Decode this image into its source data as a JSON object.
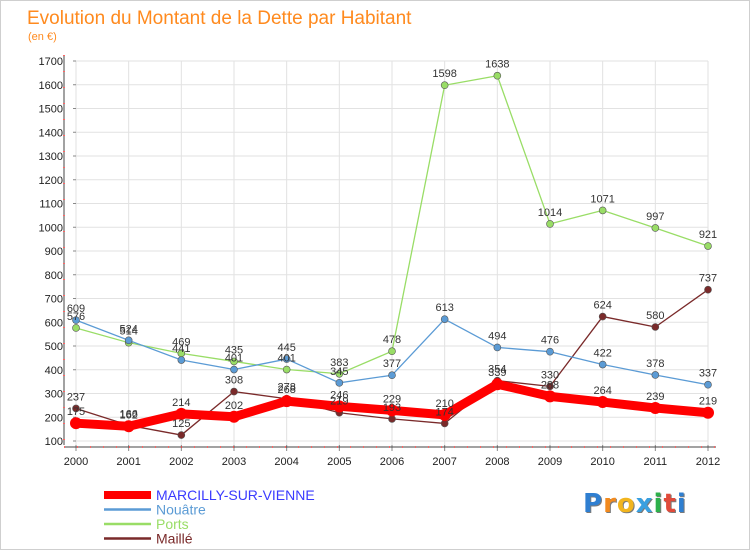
{
  "title": "Evolution du Montant de la Dette par Habitant",
  "subtitle": "(en €)",
  "logo": {
    "text": "Proxiti",
    "letters": [
      "P",
      "r",
      "o",
      "x",
      "i",
      "t",
      "i"
    ],
    "colors": [
      "#2f7fd1",
      "#f28a1e",
      "#f2b51e",
      "#3aa0e0",
      "#2eb14b",
      "#e04a3a",
      "#2f7fd1"
    ]
  },
  "chart_data": {
    "type": "line",
    "title": "Evolution du Montant de la Dette par Habitant",
    "subtitle": "(en €)",
    "xlabel": "",
    "ylabel": "",
    "x": [
      "2000",
      "2001",
      "2002",
      "2003",
      "2004",
      "2005",
      "2006",
      "2007",
      "2008",
      "2009",
      "2010",
      "2011",
      "2012"
    ],
    "ylim": [
      100,
      1700
    ],
    "yticks": [
      100,
      200,
      300,
      400,
      500,
      600,
      700,
      800,
      900,
      1000,
      1100,
      1200,
      1300,
      1400,
      1500,
      1600,
      1700
    ],
    "grid": true,
    "legend_position": "bottom-left",
    "series": [
      {
        "name": "MARCILLY-SUR-VIENNE",
        "color": "#ff0000",
        "values": [
          175,
          162,
          214,
          202,
          268,
          246,
          229,
          210,
          339,
          288,
          264,
          239,
          219
        ]
      },
      {
        "name": "Nouâtre",
        "color": "#5b9bd5",
        "values": [
          609,
          524,
          441,
          401,
          445,
          345,
          377,
          613,
          494,
          476,
          422,
          378,
          337
        ]
      },
      {
        "name": "Ports",
        "color": "#99dd66",
        "values": [
          576,
          514,
          469,
          435,
          401,
          383,
          478,
          1598,
          1638,
          1014,
          1071,
          997,
          921
        ]
      },
      {
        "name": "Maillé",
        "color": "#7a2a2a",
        "values": [
          237,
          166,
          125,
          308,
          278,
          219,
          193,
          174,
          354,
          330,
          624,
          580,
          737
        ]
      }
    ]
  }
}
